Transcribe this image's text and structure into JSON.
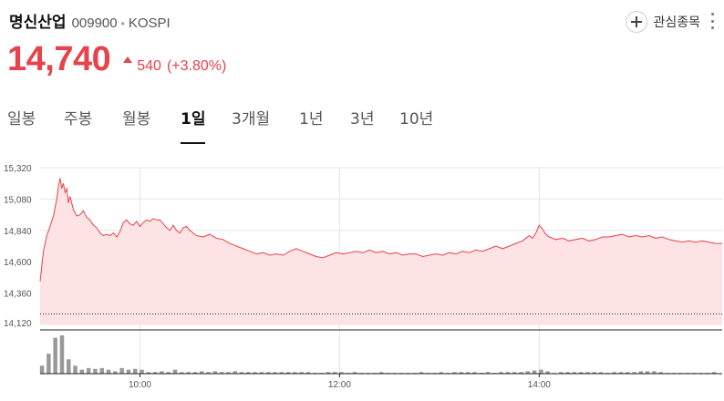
{
  "stock": {
    "name": "명신산업",
    "code": "009900",
    "market": "KOSPI",
    "watch_label": "관심종목"
  },
  "quote": {
    "price": "14,740",
    "change": "540",
    "change_rate": "(+3.80%)"
  },
  "colors": {
    "up": "#e8424b",
    "line": "#e8424b",
    "area": "#fde3e3",
    "volume": "#999999",
    "grid": "#e6e6e6"
  },
  "tabs": [
    {
      "label": "일봉",
      "active": false
    },
    {
      "label": "주봉",
      "active": false
    },
    {
      "label": "월봉",
      "active": false
    },
    {
      "label": "1일",
      "active": true
    },
    {
      "label": "3개월",
      "active": false
    },
    {
      "label": "1년",
      "active": false
    },
    {
      "label": "3년",
      "active": false
    },
    {
      "label": "10년",
      "active": false
    }
  ],
  "chart_data": {
    "type": "area",
    "y_ticks": [
      "15,320",
      "15,080",
      "14,840",
      "14,600",
      "14,360",
      "14,120"
    ],
    "y_tick_values": [
      15320,
      15080,
      14840,
      14600,
      14360,
      14120
    ],
    "ylim": [
      14120,
      15320
    ],
    "x_ticks": [
      "10:00",
      "12:00",
      "14:00"
    ],
    "x_tick_minutes": [
      60,
      180,
      300
    ],
    "xlim": [
      0,
      410
    ],
    "reference_price": 14200,
    "price_series": {
      "minutes": [
        0,
        2,
        4,
        6,
        8,
        10,
        11,
        12,
        13,
        14,
        15,
        16,
        17,
        18,
        20,
        22,
        24,
        26,
        28,
        30,
        32,
        34,
        36,
        38,
        40,
        42,
        44,
        46,
        48,
        50,
        52,
        54,
        56,
        58,
        60,
        62,
        64,
        66,
        68,
        70,
        72,
        74,
        76,
        78,
        80,
        82,
        84,
        86,
        88,
        90,
        94,
        98,
        102,
        106,
        110,
        114,
        118,
        122,
        126,
        130,
        134,
        138,
        142,
        146,
        150,
        154,
        158,
        162,
        166,
        170,
        174,
        178,
        182,
        186,
        190,
        194,
        198,
        202,
        206,
        210,
        214,
        218,
        222,
        226,
        230,
        234,
        238,
        242,
        246,
        250,
        254,
        258,
        262,
        266,
        270,
        274,
        278,
        282,
        286,
        290,
        294,
        296,
        298,
        300,
        302,
        304,
        306,
        310,
        314,
        318,
        322,
        326,
        330,
        334,
        338,
        342,
        346,
        350,
        354,
        358,
        362,
        366,
        370,
        374,
        378,
        382,
        386,
        390,
        394,
        398,
        402,
        406,
        410
      ],
      "values": [
        14450,
        14680,
        14800,
        14870,
        14950,
        15080,
        15180,
        15240,
        15160,
        15200,
        15130,
        15160,
        15050,
        15100,
        15000,
        14950,
        14960,
        14990,
        14940,
        14920,
        14880,
        14860,
        14820,
        14800,
        14810,
        14800,
        14820,
        14790,
        14830,
        14900,
        14920,
        14890,
        14880,
        14910,
        14870,
        14900,
        14920,
        14910,
        14930,
        14920,
        14920,
        14890,
        14860,
        14840,
        14880,
        14840,
        14820,
        14860,
        14870,
        14840,
        14800,
        14790,
        14810,
        14780,
        14770,
        14740,
        14720,
        14700,
        14680,
        14660,
        14670,
        14650,
        14660,
        14650,
        14680,
        14700,
        14680,
        14660,
        14640,
        14630,
        14650,
        14670,
        14660,
        14670,
        14680,
        14670,
        14690,
        14670,
        14680,
        14660,
        14670,
        14650,
        14660,
        14660,
        14640,
        14650,
        14660,
        14650,
        14670,
        14660,
        14680,
        14670,
        14690,
        14680,
        14700,
        14720,
        14700,
        14720,
        14740,
        14760,
        14800,
        14780,
        14820,
        14880,
        14850,
        14810,
        14790,
        14770,
        14780,
        14760,
        14770,
        14780,
        14760,
        14770,
        14790,
        14790,
        14800,
        14810,
        14790,
        14800,
        14790,
        14800,
        14780,
        14790,
        14770,
        14760,
        14750,
        14760,
        14750,
        14760,
        14750,
        14740,
        14740
      ]
    },
    "volume_series": {
      "minutes": [
        1,
        5,
        9,
        13,
        17,
        21,
        25,
        29,
        33,
        37,
        41,
        45,
        49,
        53,
        57,
        61,
        65,
        69,
        73,
        77,
        81,
        85,
        89,
        93,
        97,
        101,
        105,
        109,
        113,
        117,
        121,
        125,
        129,
        133,
        137,
        141,
        145,
        149,
        153,
        157,
        161,
        165,
        169,
        173,
        177,
        181,
        185,
        189,
        193,
        197,
        201,
        205,
        209,
        213,
        217,
        221,
        225,
        229,
        233,
        237,
        241,
        245,
        249,
        253,
        257,
        261,
        265,
        269,
        273,
        277,
        281,
        285,
        289,
        293,
        297,
        301,
        305,
        309,
        313,
        317,
        321,
        325,
        329,
        333,
        337,
        341,
        345,
        349,
        353,
        357,
        361,
        365,
        369,
        373,
        377,
        381,
        385,
        389,
        393,
        397,
        401,
        405
      ],
      "values": [
        10,
        25,
        45,
        48,
        18,
        10,
        5,
        7,
        6,
        7,
        5,
        3,
        7,
        5,
        6,
        5,
        2,
        2,
        3,
        2,
        5,
        2,
        2,
        2,
        3,
        2,
        3,
        2,
        2,
        3,
        2,
        2,
        2,
        2,
        2,
        2,
        2,
        2,
        2,
        2,
        2,
        1,
        1,
        2,
        2,
        2,
        1,
        2,
        1,
        1,
        1,
        2,
        1,
        1,
        1,
        1,
        1,
        2,
        1,
        1,
        2,
        1,
        2,
        2,
        2,
        2,
        1,
        2,
        1,
        2,
        2,
        2,
        2,
        3,
        4,
        5,
        3,
        1,
        2,
        2,
        2,
        2,
        2,
        2,
        2,
        1,
        2,
        2,
        2,
        2,
        3,
        3,
        3,
        2,
        1,
        1,
        1,
        1,
        1,
        1,
        1,
        2
      ]
    }
  }
}
